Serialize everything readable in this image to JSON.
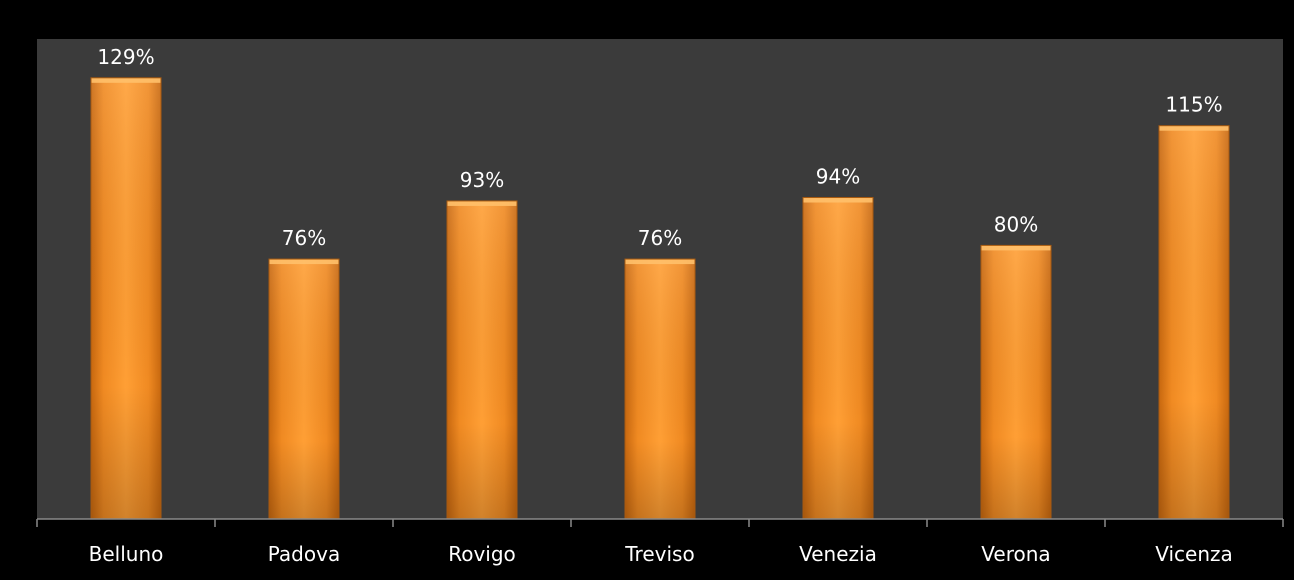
{
  "chart_data": {
    "type": "bar",
    "categories": [
      "Belluno",
      "Padova",
      "Rovigo",
      "Treviso",
      "Venezia",
      "Verona",
      "Vicenza"
    ],
    "values": [
      129,
      76,
      93,
      76,
      94,
      80,
      115
    ],
    "data_labels": [
      "129%",
      "76%",
      "93%",
      "76%",
      "94%",
      "80%",
      "115%"
    ],
    "unit": "%",
    "ylim": [
      0,
      140
    ],
    "grid": false,
    "legend": "none",
    "title": "",
    "xlabel": "",
    "ylabel": ""
  },
  "colors": {
    "page_background": "#000000",
    "plot_background": "#3b3b3b",
    "bar": "#f39a2e",
    "bar_highlight": "#ffc06a",
    "bar_shadow": "#c56a12",
    "axis": "#8a8a8a",
    "text": "#ffffff"
  }
}
